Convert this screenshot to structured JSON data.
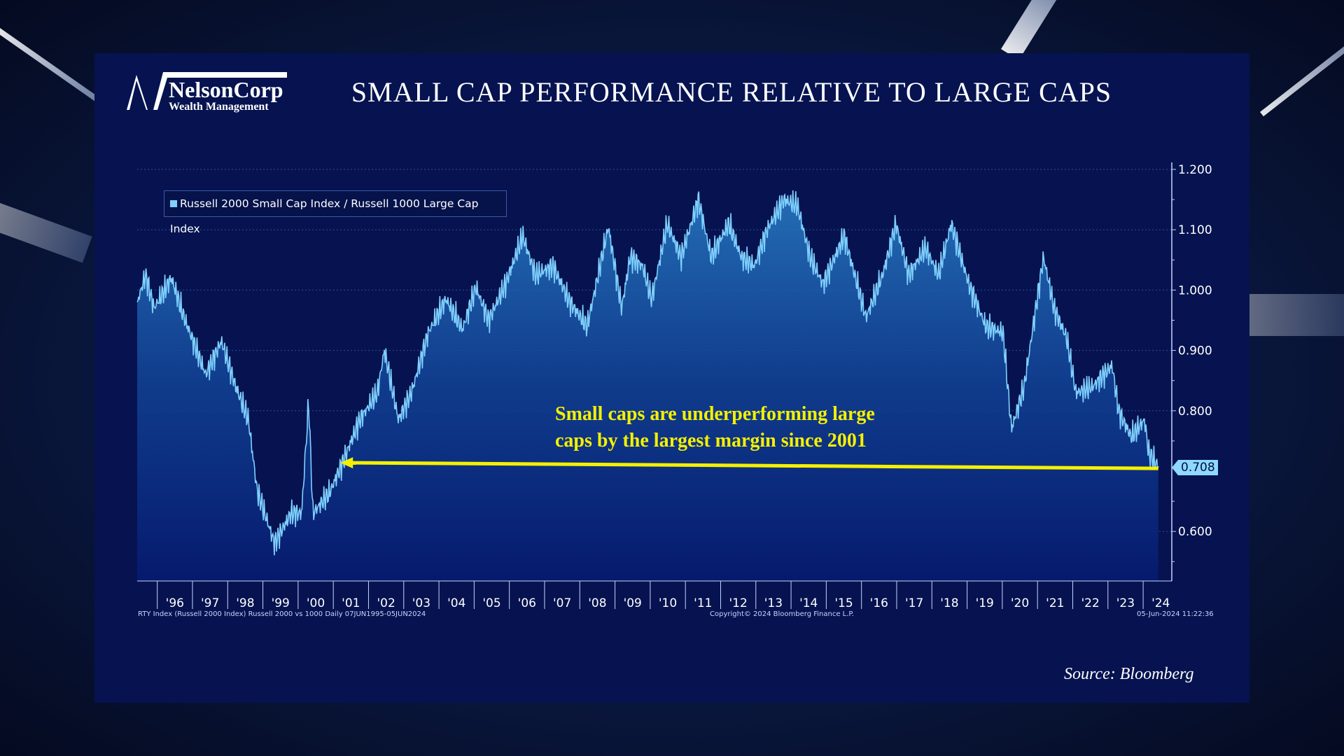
{
  "header": {
    "title": "SMALL CAP PERFORMANCE RELATIVE TO LARGE CAPS",
    "logo_name": "NelsonCorp",
    "logo_sub": "Wealth Management"
  },
  "annotation": {
    "line1": "Small caps are underperforming large",
    "line2": "caps by the largest margin since 2001"
  },
  "footer": {
    "left": "RTY Index (Russell 2000 Index) Russell 2000 vs 1000  Daily 07JUN1995-05JUN2024",
    "center": "Copyright© 2024 Bloomberg Finance L.P.",
    "right": "05-Jun-2024 11:22:36"
  },
  "source": "Source: Bloomberg",
  "colors": {
    "line": "#7fd0ff",
    "arrow": "#f4f000",
    "panel": "#061350"
  },
  "chart_data": {
    "type": "area",
    "title": "SMALL CAP PERFORMANCE RELATIVE TO LARGE CAPS",
    "legend": "Russell 2000 Small Cap Index / Russell 1000 Large Cap Index",
    "legend_position": "top-left",
    "last_value": "0.708",
    "ylim": [
      0.52,
      1.22
    ],
    "xlim": [
      1995.43,
      2024.6
    ],
    "y_ticks": [
      "0.600",
      "0.800",
      "0.900",
      "1.000",
      "1.100",
      "1.200"
    ],
    "y_tick_values": [
      0.6,
      0.8,
      0.9,
      1.0,
      1.1,
      1.2
    ],
    "x_tick_labels": [
      "'96",
      "'97",
      "'98",
      "'99",
      "'00",
      "'01",
      "'02",
      "'03",
      "'04",
      "'05",
      "'06",
      "'07",
      "'08",
      "'09",
      "'10",
      "'11",
      "'12",
      "'13",
      "'14",
      "'15",
      "'16",
      "'17",
      "'18",
      "'19",
      "'20",
      "'21",
      "'22",
      "'23",
      "'24"
    ],
    "x": [
      1995.43,
      1995.67,
      1995.91,
      1996.4,
      1996.76,
      1997.38,
      1997.82,
      1998.23,
      1998.59,
      1998.83,
      1999.33,
      1999.8,
      2000.1,
      2000.3,
      2000.42,
      2000.9,
      2001.27,
      2001.75,
      2002.25,
      2002.45,
      2002.85,
      2003.22,
      2003.7,
      2004.2,
      2004.67,
      2005.05,
      2005.41,
      2005.89,
      2006.38,
      2006.74,
      2007.24,
      2007.72,
      2008.21,
      2008.81,
      2009.19,
      2009.43,
      2009.78,
      2010.04,
      2010.48,
      2010.88,
      2011.37,
      2011.73,
      2012.23,
      2012.59,
      2012.96,
      2013.32,
      2013.8,
      2014.18,
      2014.54,
      2014.91,
      2015.51,
      2016.13,
      2016.6,
      2016.98,
      2017.34,
      2017.82,
      2018.19,
      2018.55,
      2019.05,
      2019.53,
      2020.02,
      2020.26,
      2020.62,
      2021.17,
      2021.47,
      2021.83,
      2022.09,
      2022.57,
      2023.12,
      2023.3,
      2023.66,
      2024.04,
      2024.16,
      2024.43
    ],
    "y": [
      0.98,
      1.025,
      0.97,
      1.02,
      0.955,
      0.86,
      0.915,
      0.84,
      0.785,
      0.67,
      0.58,
      0.63,
      0.63,
      0.815,
      0.63,
      0.665,
      0.715,
      0.785,
      0.83,
      0.9,
      0.785,
      0.83,
      0.93,
      0.985,
      0.935,
      1.005,
      0.95,
      1.01,
      1.09,
      1.025,
      1.04,
      0.98,
      0.94,
      1.105,
      0.97,
      1.055,
      1.04,
      0.985,
      1.11,
      1.055,
      1.15,
      1.055,
      1.11,
      1.055,
      1.04,
      1.1,
      1.15,
      1.14,
      1.055,
      1.01,
      1.09,
      0.955,
      1.025,
      1.11,
      1.025,
      1.07,
      1.025,
      1.11,
      1.01,
      0.94,
      0.93,
      0.77,
      0.84,
      1.055,
      0.97,
      0.92,
      0.83,
      0.84,
      0.875,
      0.8,
      0.757,
      0.785,
      0.73,
      0.708
    ],
    "annotation": "Small caps are underperforming large caps by the largest margin since 2001",
    "reference_line": {
      "value": 0.708,
      "from_year": 2001.2,
      "to_year": 2024.43
    }
  }
}
